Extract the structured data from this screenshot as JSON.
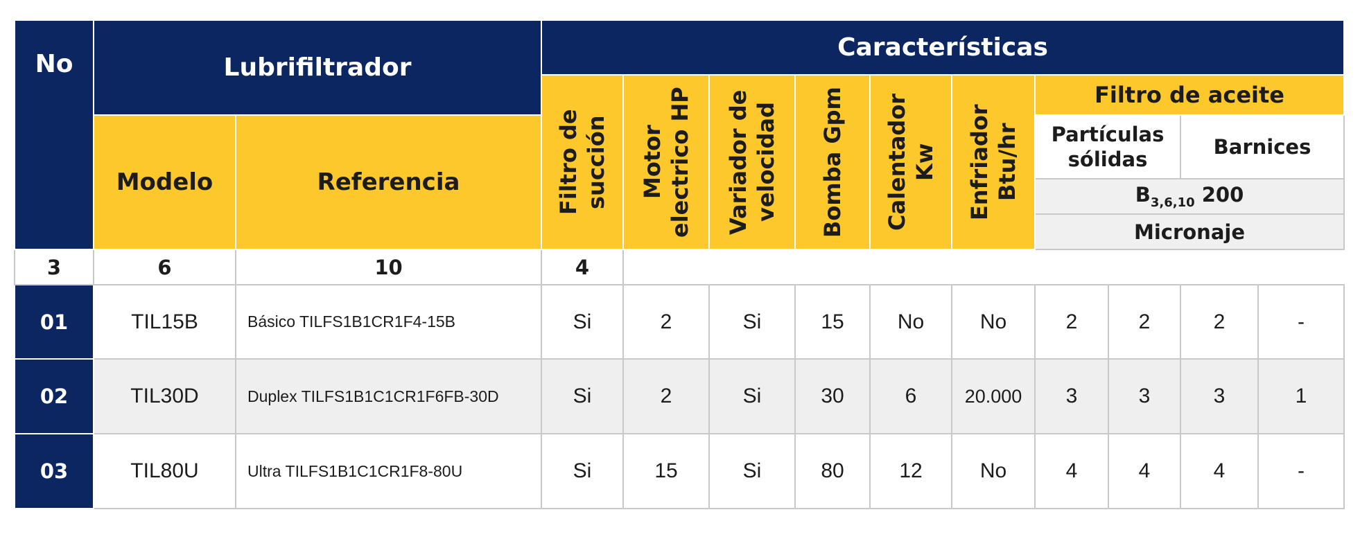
{
  "header": {
    "no": "No",
    "lubrifiltrador": "Lubrifiltrador",
    "caracteristicas": "Características",
    "modelo": "Modelo",
    "referencia": "Referencia",
    "filtro_succion": "Filtro de succión",
    "motor": "Motor electrico HP",
    "variador": "Variador de velocidad",
    "bomba": "Bomba Gpm",
    "calentador": "Calentador Kw",
    "enfriador": "Enfriador Btu/hr",
    "filtro_aceite": "Filtro de aceite",
    "particulas": "Partículas sólidas",
    "barnices": "Barnices",
    "beta_base": "B",
    "beta_sub": "3,6,10",
    "beta_value": " 200",
    "micronaje": "Micronaje",
    "micron_values": [
      "3",
      "6",
      "10",
      "4"
    ]
  },
  "rows": [
    {
      "no": "01",
      "modelo": "TIL15B",
      "referencia": "Básico TILFS1B1CR1F4-15B",
      "succion": "Si",
      "motor": "2",
      "variador": "Si",
      "bomba": "15",
      "calentador": "No",
      "enfriador": "No",
      "m3": "2",
      "m6": "2",
      "m10": "2",
      "m4": "-"
    },
    {
      "no": "02",
      "modelo": "TIL30D",
      "referencia": "Duplex TILFS1B1C1CR1F6FB-30D",
      "succion": "Si",
      "motor": "2",
      "variador": "Si",
      "bomba": "30",
      "calentador": "6",
      "enfriador": "20.000",
      "m3": "3",
      "m6": "3",
      "m10": "3",
      "m4": "1"
    },
    {
      "no": "03",
      "modelo": "TIL80U",
      "referencia": "Ultra TILFS1B1C1CR1F8-80U",
      "succion": "Si",
      "motor": "15",
      "variador": "Si",
      "bomba": "80",
      "calentador": "12",
      "enfriador": "No",
      "m3": "4",
      "m6": "4",
      "m10": "4",
      "m4": "-"
    }
  ],
  "colors": {
    "navy": "#0b2660",
    "yellow": "#fcc82b",
    "grey_row": "#efefef"
  }
}
